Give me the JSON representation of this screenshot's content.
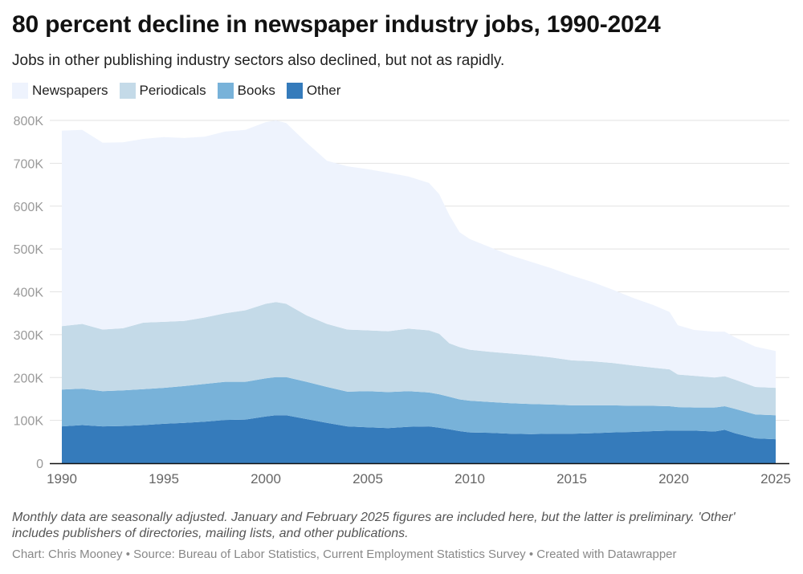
{
  "header": {
    "title": "80 percent decline in newspaper industry jobs, 1990-2024",
    "subtitle": "Jobs in other publishing industry sectors also declined, but not as rapidly."
  },
  "legend": [
    {
      "label": "Newspapers",
      "color": "#eef3fd"
    },
    {
      "label": "Periodicals",
      "color": "#c4dae8"
    },
    {
      "label": "Books",
      "color": "#78b2d9"
    },
    {
      "label": "Other",
      "color": "#357bbb"
    }
  ],
  "footer": {
    "note": "Monthly data are seasonally adjusted. January and February 2025 figures are included here, but the latter is preliminary. 'Other' includes publishers of directories, mailing lists, and other publications.",
    "credit": "Chart: Chris Mooney • Source: Bureau of Labor Statistics, Current Employment Statistics Survey • Created with Datawrapper"
  },
  "chart_data": {
    "type": "area",
    "stacked": true,
    "title": "80 percent decline in newspaper industry jobs, 1990-2024",
    "subtitle": "Jobs in other publishing industry sectors also declined, but not as rapidly.",
    "xlabel": "",
    "ylabel": "",
    "xlim": [
      1990,
      2025
    ],
    "ylim": [
      0,
      800000
    ],
    "grid": true,
    "legend_position": "top-left",
    "y_ticks": [
      0,
      100000,
      200000,
      300000,
      400000,
      500000,
      600000,
      700000,
      800000
    ],
    "y_tick_labels": [
      "0",
      "100K",
      "200K",
      "300K",
      "400K",
      "500K",
      "600K",
      "700K",
      "800K"
    ],
    "x_ticks": [
      1990,
      1995,
      2000,
      2005,
      2010,
      2015,
      2020,
      2025
    ],
    "x_tick_labels": [
      "1990",
      "1995",
      "2000",
      "2005",
      "2010",
      "2015",
      "2020",
      "2025"
    ],
    "x": [
      1990,
      1991,
      1992,
      1993,
      1994,
      1995,
      1996,
      1997,
      1998,
      1999,
      2000,
      2000.5,
      2001,
      2002,
      2003,
      2004,
      2005,
      2006,
      2007,
      2008,
      2008.5,
      2009,
      2009.5,
      2010,
      2011,
      2012,
      2013,
      2014,
      2015,
      2016,
      2017,
      2018,
      2019,
      2019.8,
      2020.2,
      2021,
      2022,
      2022.5,
      2023,
      2024,
      2025
    ],
    "series": [
      {
        "name": "Other",
        "color": "#357bbb",
        "values": [
          86000,
          89000,
          86000,
          87000,
          89000,
          92000,
          94000,
          97000,
          101000,
          102000,
          109000,
          112000,
          112000,
          103000,
          94000,
          86000,
          84000,
          82000,
          85000,
          86000,
          83000,
          79000,
          75000,
          72000,
          71000,
          69000,
          68000,
          69000,
          69000,
          70000,
          72000,
          73000,
          75000,
          76000,
          76000,
          76000,
          74000,
          78000,
          70000,
          58000,
          56000
        ]
      },
      {
        "name": "Books",
        "color": "#78b2d9",
        "values": [
          86000,
          85000,
          82000,
          83000,
          84000,
          84000,
          86000,
          88000,
          89000,
          88000,
          89000,
          89000,
          89000,
          87000,
          84000,
          81000,
          84000,
          84000,
          83000,
          79000,
          78000,
          76000,
          74000,
          74000,
          72000,
          71000,
          70000,
          68000,
          66000,
          65000,
          63000,
          61000,
          59000,
          57000,
          55000,
          54000,
          56000,
          55000,
          57000,
          56000,
          56000
        ]
      },
      {
        "name": "Periodicals",
        "color": "#c4dae8",
        "values": [
          148000,
          151000,
          144000,
          145000,
          155000,
          154000,
          152000,
          155000,
          160000,
          167000,
          174000,
          175000,
          171000,
          155000,
          147000,
          145000,
          142000,
          142000,
          146000,
          145000,
          141000,
          125000,
          122000,
          119000,
          117000,
          116000,
          114000,
          110000,
          105000,
          103000,
          99000,
          94000,
          89000,
          86000,
          76000,
          74000,
          70000,
          70000,
          68000,
          64000,
          64000
        ]
      },
      {
        "name": "Newspapers",
        "color": "#eef3fd",
        "values": [
          456000,
          453000,
          436000,
          434000,
          429000,
          431000,
          427000,
          422000,
          424000,
          421000,
          424000,
          424000,
          422000,
          403000,
          381000,
          381000,
          376000,
          370000,
          355000,
          344000,
          326000,
          299000,
          268000,
          258000,
          244000,
          229000,
          218000,
          208000,
          198000,
          185000,
          171000,
          158000,
          146000,
          134000,
          115000,
          107000,
          107000,
          104000,
          99000,
          94000,
          86000
        ]
      }
    ]
  }
}
